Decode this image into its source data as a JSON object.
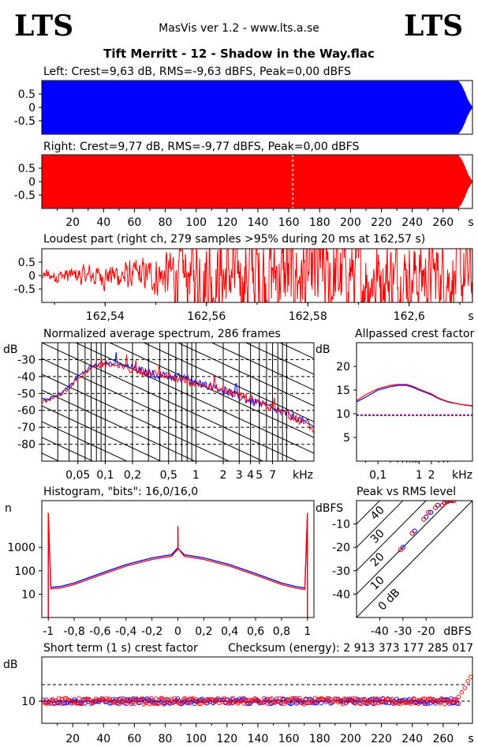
{
  "header": {
    "logo_left": "LTS",
    "logo_right": "LTS",
    "app_title": "MasVis ver 1.2 - www.lts.a.se",
    "file_title": "Tift Merritt - 12 - Shadow in the Way.flac"
  },
  "colors": {
    "left": "#0000ff",
    "right": "#ff0000",
    "limit": "#800080"
  },
  "panels": {
    "left_wave": {
      "label": "Left: Crest=9,63 dB, RMS=-9,63 dBFS, Peak=0,00 dBFS",
      "yticks": [
        "0.5",
        "0",
        "-0.5"
      ]
    },
    "right_wave": {
      "label": "Right: Crest=9,77 dB, RMS=-9,77 dBFS, Peak=0,00 dBFS",
      "yticks": [
        "0.5",
        "0",
        "-0.5"
      ],
      "xticks": [
        "20",
        "40",
        "60",
        "80",
        "100",
        "120",
        "140",
        "160",
        "180",
        "200",
        "220",
        "240",
        "260",
        "s"
      ]
    },
    "loudest": {
      "label": "Loudest part (right ch, 279 samples >95% during 20 ms at 162,57 s)",
      "yticks": [
        "0.5",
        "0",
        "-0.5"
      ],
      "xticks": [
        "162,54",
        "162,56",
        "162,58",
        "162,6",
        "s"
      ]
    },
    "spectrum": {
      "label": "Normalized average spectrum, 286 frames",
      "ylabel": "dB",
      "yticks": [
        "-30",
        "-40",
        "-50",
        "-60",
        "-70",
        "-80"
      ],
      "xticks": [
        "0,05",
        "0,1",
        "0,2",
        "0,5",
        "1",
        "2",
        "3",
        "4",
        "5",
        "7",
        "kHz"
      ]
    },
    "crest": {
      "label": "Allpassed crest factor",
      "ylabel": "dB",
      "yticks": [
        "20",
        "15",
        "10",
        "5"
      ],
      "xticks": [
        "0,1",
        "1",
        "2",
        "kHz"
      ]
    },
    "histogram": {
      "label": "Histogram, \"bits\": 16,0/16,0",
      "ylabel": "n",
      "yticks": [
        "1000",
        "100",
        "10"
      ],
      "xticks": [
        "-1",
        "-0,8",
        "-0,6",
        "-0,4",
        "-0,2",
        "0",
        "0,2",
        "0,4",
        "0,6",
        "0,8",
        "1"
      ]
    },
    "peakrms": {
      "label": "Peak vs RMS level",
      "ylabel": "dBFS",
      "yticks": [
        "-10",
        "-20",
        "-30",
        "-40"
      ],
      "xticks": [
        "-40",
        "-30",
        "-20",
        "dBFS"
      ],
      "diag_labels": [
        "40",
        "30",
        "20",
        "10",
        "0 dB"
      ]
    },
    "shortterm": {
      "label": "Short term (1 s) crest factor",
      "checksum": "Checksum (energy):  2 913 373 177 285 017",
      "ylabel": "dB",
      "yticks": [
        "10"
      ],
      "xticks": [
        "20",
        "40",
        "60",
        "80",
        "100",
        "120",
        "140",
        "160",
        "180",
        "200",
        "220",
        "240",
        "260",
        "s"
      ]
    }
  },
  "chart_data": [
    {
      "type": "area",
      "title": "Left: Crest=9,63 dB, RMS=-9,63 dBFS, Peak=0,00 dBFS",
      "xlim": [
        0,
        279
      ],
      "ylim": [
        -1,
        1
      ],
      "series": [
        {
          "name": "Left",
          "envelope_x": [
            0,
            270,
            272,
            274,
            276,
            278,
            279
          ],
          "envelope_y": [
            1,
            1,
            0.85,
            0.6,
            0.3,
            0.1,
            0.02
          ]
        }
      ]
    },
    {
      "type": "area",
      "title": "Right: Crest=9,77 dB, RMS=-9,77 dBFS, Peak=0,00 dBFS",
      "xlim": [
        0,
        279
      ],
      "ylim": [
        -1,
        1
      ],
      "marker_x": 162.57,
      "series": [
        {
          "name": "Right",
          "envelope_x": [
            0,
            270,
            272,
            274,
            276,
            278,
            279
          ],
          "envelope_y": [
            1,
            1,
            0.85,
            0.6,
            0.3,
            0.1,
            0.02
          ]
        }
      ]
    },
    {
      "type": "line",
      "title": "Loudest part (right ch, 279 samples >95% during 20 ms at 162,57 s)",
      "xlim": [
        162.5275,
        162.6125
      ],
      "ylim": [
        -0.9,
        0.9
      ],
      "series": [
        {
          "name": "Right",
          "x_start": 162.5275,
          "x_end": 162.6125,
          "amplitude_env": [
            [
              162.5275,
              0.12
            ],
            [
              162.54,
              0.22
            ],
            [
              162.548,
              0.3
            ],
            [
              162.555,
              0.6
            ],
            [
              162.56,
              0.95
            ],
            [
              162.575,
              1.0
            ],
            [
              162.595,
              0.85
            ],
            [
              162.6125,
              0.75
            ]
          ]
        }
      ]
    },
    {
      "type": "line",
      "title": "Normalized average spectrum, 286 frames",
      "xscale": "log",
      "xlim": [
        0.02,
        20
      ],
      "ylim": [
        -90,
        -20
      ],
      "x": [
        0.02,
        0.025,
        0.03,
        0.04,
        0.05,
        0.07,
        0.1,
        0.15,
        0.2,
        0.3,
        0.5,
        0.7,
        1,
        2,
        3,
        5,
        7,
        10,
        15,
        20
      ],
      "series": [
        {
          "name": "Left",
          "values": [
            -54,
            -53,
            -51,
            -46,
            -40,
            -34,
            -32,
            -33,
            -35,
            -38,
            -40,
            -41,
            -43,
            -48,
            -52,
            -56,
            -59,
            -62,
            -66,
            -70
          ]
        },
        {
          "name": "Right",
          "values": [
            -55,
            -53,
            -52,
            -47,
            -41,
            -35,
            -33,
            -34,
            -36,
            -38,
            -40,
            -42,
            -44,
            -48,
            -51,
            -55,
            -59,
            -62,
            -67,
            -71
          ]
        }
      ]
    },
    {
      "type": "line",
      "title": "Allpassed crest factor",
      "xscale": "log",
      "xlim": [
        0.03,
        20
      ],
      "ylim": [
        0,
        25
      ],
      "hline": 9.7,
      "x": [
        0.03,
        0.05,
        0.1,
        0.2,
        0.3,
        0.5,
        0.7,
        1,
        2,
        3,
        5,
        10,
        20
      ],
      "series": [
        {
          "name": "Left",
          "values": [
            12.5,
            13.5,
            15,
            15.7,
            16,
            16,
            15.6,
            15,
            14,
            13.2,
            12.5,
            12,
            11.7
          ]
        },
        {
          "name": "Right",
          "values": [
            12.8,
            14,
            15.3,
            16,
            16.2,
            16.2,
            15.8,
            15.2,
            14.2,
            13.3,
            12.6,
            12,
            11.6
          ]
        }
      ]
    },
    {
      "type": "line",
      "title": "Histogram, \"bits\": 16,0/16,0",
      "yscale": "log",
      "xlim": [
        -1.05,
        1.05
      ],
      "ylim": [
        1,
        100000
      ],
      "x": [
        -1,
        -0.98,
        -0.9,
        -0.8,
        -0.6,
        -0.4,
        -0.2,
        -0.05,
        0,
        0.05,
        0.2,
        0.4,
        0.6,
        0.8,
        0.9,
        0.98,
        1
      ],
      "series": [
        {
          "name": "Left",
          "values": [
            30000,
            18,
            20,
            28,
            70,
            170,
            330,
            450,
            900,
            450,
            330,
            170,
            70,
            28,
            20,
            17,
            30000
          ]
        },
        {
          "name": "Right",
          "values": [
            30000,
            18,
            20,
            28,
            70,
            170,
            330,
            450,
            900,
            450,
            330,
            170,
            70,
            28,
            20,
            17,
            30000
          ]
        }
      ]
    },
    {
      "type": "scatter",
      "title": "Peak vs RMS level",
      "xlim": [
        -50,
        0
      ],
      "ylim": [
        -50,
        0
      ],
      "series": [
        {
          "name": "Left",
          "x": [
            -30,
            -25,
            -20,
            -18,
            -15,
            -12,
            -11,
            -10,
            -9,
            -8
          ],
          "y": [
            -20,
            -13,
            -7,
            -5,
            -2,
            -1,
            -0.5,
            0,
            0,
            0
          ]
        },
        {
          "name": "Right",
          "x": [
            -31,
            -26,
            -21,
            -19,
            -16,
            -13,
            -12,
            -11,
            -10,
            -9,
            -8
          ],
          "y": [
            -21,
            -14,
            -8,
            -5,
            -3,
            -2,
            -1,
            0,
            0,
            0,
            0
          ]
        }
      ]
    },
    {
      "type": "scatter",
      "title": "Short term (1 s) crest factor",
      "xlim": [
        0,
        279
      ],
      "ylim": [
        0,
        30
      ],
      "hlines": [
        10,
        17.5
      ],
      "series": [
        {
          "name": "Left",
          "mean": 10,
          "spread": 1.2
        },
        {
          "name": "Right",
          "mean": 10,
          "spread": 1.4,
          "tail_x": [
            270,
            272,
            274,
            276,
            278
          ],
          "tail_y": [
            12,
            14,
            16,
            19,
            21
          ]
        }
      ]
    }
  ]
}
